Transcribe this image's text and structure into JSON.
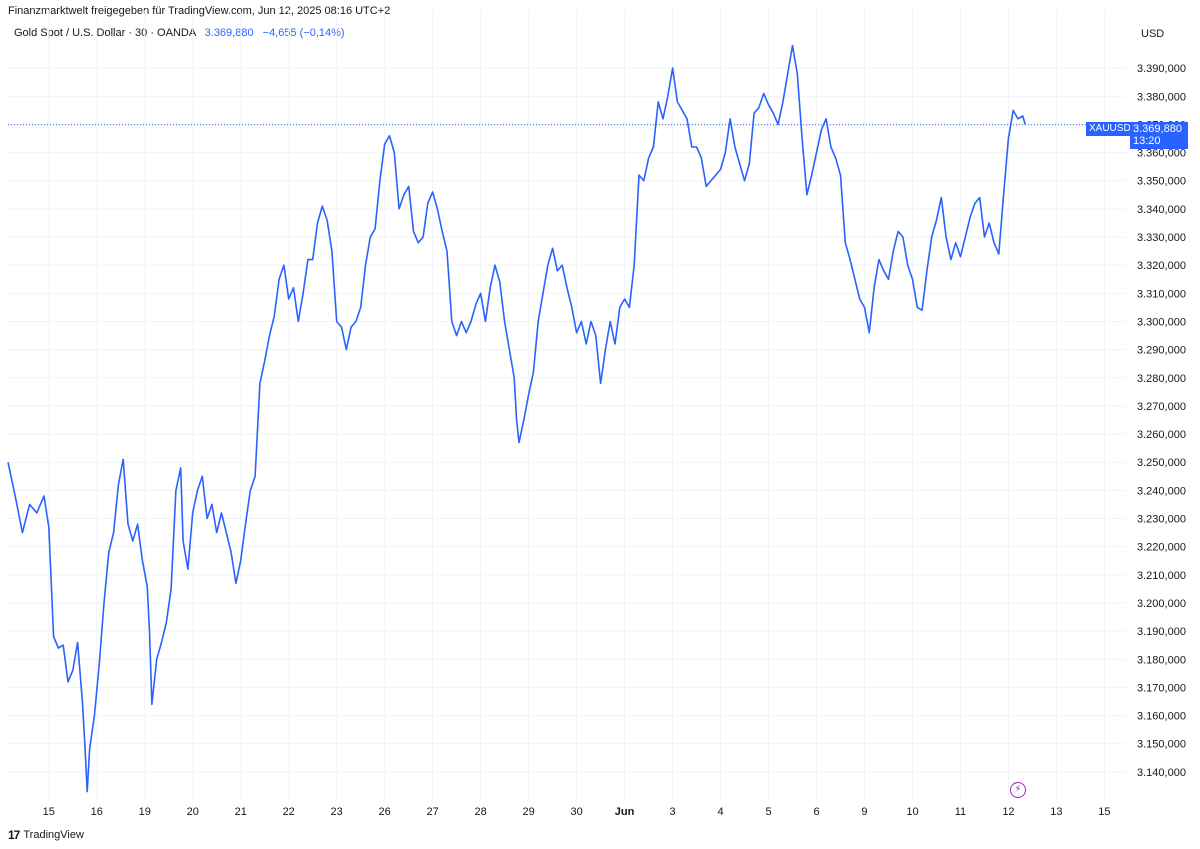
{
  "header": {
    "note": "Finanzmarktwelt freigegeben für TradingView.com, Jun 12, 2025 08:16 UTC+2",
    "symbol_line": "Gold Spot / U.S. Dollar · 30 · OANDA",
    "last_price": "3.369,880",
    "change": "−4,655 (−0,14%)",
    "currency": "USD"
  },
  "price_tag": {
    "symbol": "XAUUSD",
    "price": "3.369,880",
    "countdown": "13:20"
  },
  "footer": {
    "logo_text": "TradingView"
  },
  "colors": {
    "line": "#2962ff",
    "grid": "#f0f3fa",
    "text": "#131722"
  },
  "chart_data": {
    "type": "line",
    "series": [
      {
        "values": [
          [
            0,
            3250
          ],
          [
            0.3,
            3238
          ],
          [
            0.6,
            3225
          ],
          [
            0.9,
            3235
          ],
          [
            1.2,
            3232
          ],
          [
            1.5,
            3238
          ],
          [
            1.7,
            3227
          ],
          [
            1.9,
            3188
          ],
          [
            2.1,
            3184
          ],
          [
            2.3,
            3185
          ],
          [
            2.5,
            3172
          ],
          [
            2.7,
            3176
          ],
          [
            2.9,
            3186
          ],
          [
            3.1,
            3165
          ],
          [
            3.2,
            3150
          ],
          [
            3.3,
            3133
          ],
          [
            3.4,
            3148
          ],
          [
            3.6,
            3160
          ],
          [
            3.8,
            3178
          ],
          [
            4.0,
            3200
          ],
          [
            4.2,
            3218
          ],
          [
            4.4,
            3225
          ],
          [
            4.6,
            3242
          ],
          [
            4.8,
            3251
          ],
          [
            5.0,
            3228
          ],
          [
            5.2,
            3222
          ],
          [
            5.4,
            3228
          ],
          [
            5.6,
            3215
          ],
          [
            5.8,
            3206
          ],
          [
            5.9,
            3190
          ],
          [
            6.0,
            3164
          ],
          [
            6.2,
            3180
          ],
          [
            6.4,
            3186
          ],
          [
            6.6,
            3193
          ],
          [
            6.8,
            3205
          ],
          [
            7.0,
            3240
          ],
          [
            7.2,
            3248
          ],
          [
            7.3,
            3222
          ],
          [
            7.5,
            3212
          ],
          [
            7.7,
            3232
          ],
          [
            7.9,
            3240
          ],
          [
            8.1,
            3245
          ],
          [
            8.3,
            3230
          ],
          [
            8.5,
            3235
          ],
          [
            8.7,
            3225
          ],
          [
            8.9,
            3232
          ],
          [
            9.1,
            3225
          ],
          [
            9.3,
            3218
          ],
          [
            9.5,
            3207
          ],
          [
            9.7,
            3215
          ],
          [
            9.9,
            3228
          ],
          [
            10.1,
            3240
          ],
          [
            10.3,
            3245
          ],
          [
            10.5,
            3278
          ],
          [
            10.7,
            3286
          ],
          [
            10.9,
            3295
          ],
          [
            11.1,
            3302
          ],
          [
            11.3,
            3315
          ],
          [
            11.5,
            3320
          ],
          [
            11.7,
            3308
          ],
          [
            11.9,
            3312
          ],
          [
            12.1,
            3300
          ],
          [
            12.3,
            3310
          ],
          [
            12.5,
            3322
          ],
          [
            12.7,
            3322
          ],
          [
            12.9,
            3335
          ],
          [
            13.1,
            3341
          ],
          [
            13.3,
            3336
          ],
          [
            13.5,
            3325
          ],
          [
            13.7,
            3300
          ],
          [
            13.9,
            3298
          ],
          [
            14.1,
            3290
          ],
          [
            14.3,
            3298
          ],
          [
            14.5,
            3300
          ],
          [
            14.7,
            3305
          ],
          [
            14.9,
            3320
          ],
          [
            15.1,
            3330
          ],
          [
            15.3,
            3333
          ],
          [
            15.5,
            3350
          ],
          [
            15.7,
            3363
          ],
          [
            15.9,
            3366
          ],
          [
            16.1,
            3360
          ],
          [
            16.3,
            3340
          ],
          [
            16.5,
            3345
          ],
          [
            16.7,
            3348
          ],
          [
            16.9,
            3332
          ],
          [
            17.1,
            3328
          ],
          [
            17.3,
            3330
          ],
          [
            17.5,
            3342
          ],
          [
            17.7,
            3346
          ],
          [
            17.9,
            3340
          ],
          [
            18.1,
            3332
          ],
          [
            18.3,
            3325
          ],
          [
            18.5,
            3300
          ],
          [
            18.7,
            3295
          ],
          [
            18.9,
            3300
          ],
          [
            19.1,
            3296
          ],
          [
            19.3,
            3300
          ],
          [
            19.5,
            3306
          ],
          [
            19.7,
            3310
          ],
          [
            19.9,
            3300
          ],
          [
            20.1,
            3312
          ],
          [
            20.3,
            3320
          ],
          [
            20.5,
            3314
          ],
          [
            20.7,
            3300
          ],
          [
            20.9,
            3290
          ],
          [
            21.1,
            3280
          ],
          [
            21.2,
            3265
          ],
          [
            21.3,
            3257
          ],
          [
            21.5,
            3265
          ],
          [
            21.7,
            3274
          ],
          [
            21.9,
            3282
          ],
          [
            22.1,
            3300
          ],
          [
            22.3,
            3310
          ],
          [
            22.5,
            3320
          ],
          [
            22.7,
            3326
          ],
          [
            22.9,
            3318
          ],
          [
            23.1,
            3320
          ],
          [
            23.3,
            3312
          ],
          [
            23.5,
            3305
          ],
          [
            23.7,
            3296
          ],
          [
            23.9,
            3300
          ],
          [
            24.1,
            3292
          ],
          [
            24.3,
            3300
          ],
          [
            24.5,
            3295
          ],
          [
            24.7,
            3278
          ],
          [
            24.9,
            3290
          ],
          [
            25.1,
            3300
          ],
          [
            25.3,
            3292
          ],
          [
            25.5,
            3305
          ],
          [
            25.7,
            3308
          ],
          [
            25.9,
            3305
          ],
          [
            26.1,
            3320
          ],
          [
            26.3,
            3352
          ],
          [
            26.5,
            3350
          ],
          [
            26.7,
            3358
          ],
          [
            26.9,
            3362
          ],
          [
            27.1,
            3378
          ],
          [
            27.3,
            3372
          ],
          [
            27.5,
            3380
          ],
          [
            27.7,
            3390
          ],
          [
            27.9,
            3378
          ],
          [
            28.1,
            3375
          ],
          [
            28.3,
            3372
          ],
          [
            28.5,
            3362
          ],
          [
            28.7,
            3362
          ],
          [
            28.9,
            3358
          ],
          [
            29.1,
            3348
          ],
          [
            29.3,
            3350
          ],
          [
            29.5,
            3352
          ],
          [
            29.7,
            3354
          ],
          [
            29.9,
            3360
          ],
          [
            30.1,
            3372
          ],
          [
            30.3,
            3362
          ],
          [
            30.5,
            3356
          ],
          [
            30.7,
            3350
          ],
          [
            30.9,
            3356
          ],
          [
            31.1,
            3374
          ],
          [
            31.3,
            3376
          ],
          [
            31.5,
            3381
          ],
          [
            31.7,
            3377
          ],
          [
            31.9,
            3374
          ],
          [
            32.1,
            3370
          ],
          [
            32.3,
            3378
          ],
          [
            32.5,
            3388
          ],
          [
            32.7,
            3398
          ],
          [
            32.9,
            3388
          ],
          [
            33.1,
            3365
          ],
          [
            33.3,
            3345
          ],
          [
            33.5,
            3352
          ],
          [
            33.7,
            3360
          ],
          [
            33.9,
            3368
          ],
          [
            34.1,
            3372
          ],
          [
            34.3,
            3362
          ],
          [
            34.5,
            3358
          ],
          [
            34.7,
            3352
          ],
          [
            34.9,
            3328
          ],
          [
            35.1,
            3322
          ],
          [
            35.3,
            3315
          ],
          [
            35.5,
            3308
          ],
          [
            35.7,
            3305
          ],
          [
            35.9,
            3296
          ],
          [
            36.1,
            3312
          ],
          [
            36.3,
            3322
          ],
          [
            36.5,
            3318
          ],
          [
            36.7,
            3315
          ],
          [
            36.9,
            3325
          ],
          [
            37.1,
            3332
          ],
          [
            37.3,
            3330
          ],
          [
            37.5,
            3320
          ],
          [
            37.7,
            3315
          ],
          [
            37.9,
            3305
          ],
          [
            38.1,
            3304
          ],
          [
            38.3,
            3318
          ],
          [
            38.5,
            3330
          ],
          [
            38.7,
            3336
          ],
          [
            38.9,
            3344
          ],
          [
            39.1,
            3330
          ],
          [
            39.3,
            3322
          ],
          [
            39.5,
            3328
          ],
          [
            39.7,
            3323
          ],
          [
            39.9,
            3330
          ],
          [
            40.1,
            3337
          ],
          [
            40.3,
            3342
          ],
          [
            40.5,
            3344
          ],
          [
            40.7,
            3330
          ],
          [
            40.9,
            3335
          ],
          [
            41.1,
            3328
          ],
          [
            41.3,
            3324
          ],
          [
            41.5,
            3345
          ],
          [
            41.7,
            3365
          ],
          [
            41.9,
            3375
          ],
          [
            42.1,
            3372
          ],
          [
            42.3,
            3373
          ],
          [
            42.4,
            3370
          ]
        ]
      }
    ],
    "x_ticks": [
      {
        "x": 1.7,
        "label": "15"
      },
      {
        "x": 3.7,
        "label": "16"
      },
      {
        "x": 5.7,
        "label": "19"
      },
      {
        "x": 7.7,
        "label": "20"
      },
      {
        "x": 9.7,
        "label": "21"
      },
      {
        "x": 11.7,
        "label": "22"
      },
      {
        "x": 13.7,
        "label": "23"
      },
      {
        "x": 15.7,
        "label": "26"
      },
      {
        "x": 17.7,
        "label": "27"
      },
      {
        "x": 19.7,
        "label": "28"
      },
      {
        "x": 21.7,
        "label": "29"
      },
      {
        "x": 23.7,
        "label": "30"
      },
      {
        "x": 25.7,
        "label": "Jun"
      },
      {
        "x": 27.7,
        "label": "3"
      },
      {
        "x": 29.7,
        "label": "4"
      },
      {
        "x": 31.7,
        "label": "5"
      },
      {
        "x": 33.7,
        "label": "6"
      },
      {
        "x": 35.7,
        "label": "9"
      },
      {
        "x": 37.7,
        "label": "10"
      },
      {
        "x": 39.7,
        "label": "11"
      },
      {
        "x": 41.7,
        "label": "12"
      },
      {
        "x": 43.7,
        "label": "13"
      },
      {
        "x": 45.7,
        "label": "15"
      }
    ],
    "y_ticks": [
      "3.390,000",
      "3.380,000",
      "3.370,000",
      "3.360,000",
      "3.350,000",
      "3.340,000",
      "3.330,000",
      "3.320,000",
      "3.310,000",
      "3.300,000",
      "3.290,000",
      "3.280,000",
      "3.270,000",
      "3.260,000",
      "3.250,000",
      "3.240,000",
      "3.230,000",
      "3.220,000",
      "3.210,000",
      "3.200,000",
      "3.190,000",
      "3.180,000",
      "3.170,000",
      "3.160,000",
      "3.150,000",
      "3.140,000"
    ],
    "y_values": [
      3390,
      3380,
      3370,
      3360,
      3350,
      3340,
      3330,
      3320,
      3310,
      3300,
      3290,
      3280,
      3270,
      3260,
      3250,
      3240,
      3230,
      3220,
      3210,
      3200,
      3190,
      3180,
      3170,
      3160,
      3150,
      3140
    ],
    "last_value": 3369.88,
    "xlim": [
      0,
      46.6
    ],
    "ylim": [
      3130,
      3400
    ],
    "grid": true
  }
}
